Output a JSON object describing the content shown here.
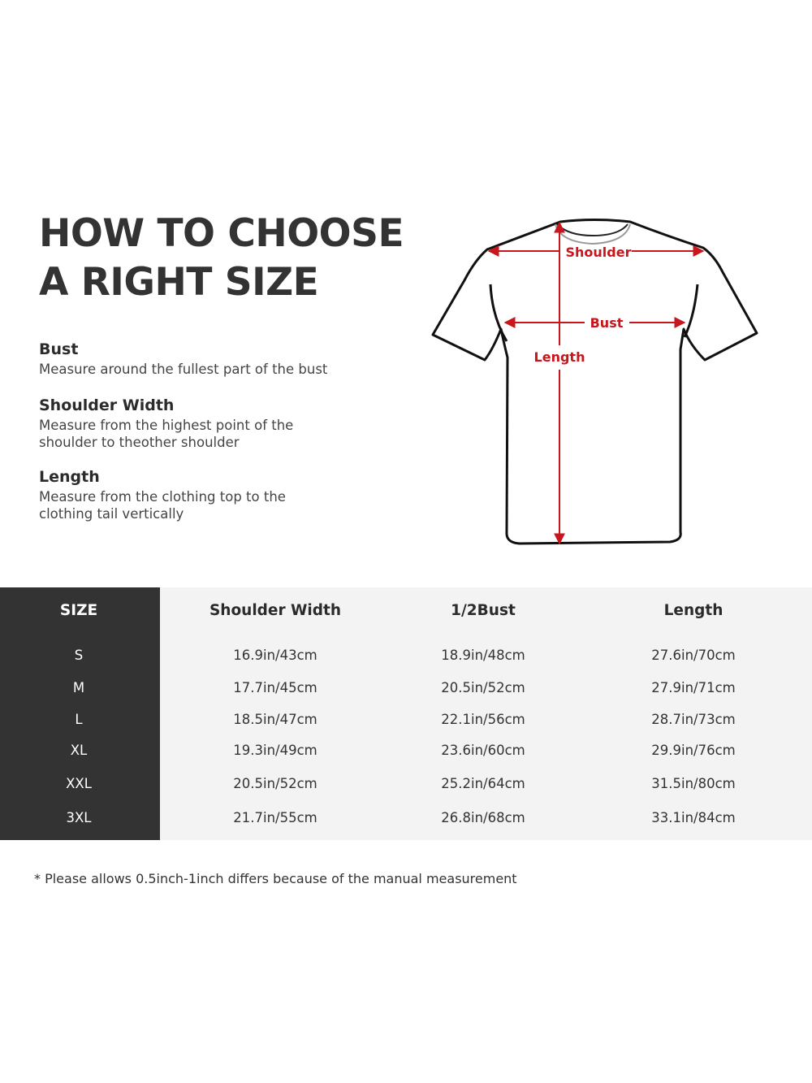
{
  "title": {
    "line1": "HOW TO CHOOSE",
    "line2": "A RIGHT SIZE"
  },
  "guide": [
    {
      "heading": "Bust",
      "text": "Measure around the fullest part of the bust"
    },
    {
      "heading": "Shoulder Width",
      "text": "Measure from the highest point of the shoulder to theother shoulder"
    },
    {
      "heading": "Length",
      "text": "Measure from the clothing top to the clothing tail vertically"
    }
  ],
  "diagram": {
    "shoulder_label": "Shoulder",
    "bust_label": "Bust",
    "length_label": "Length",
    "accent_color": "#c8161d"
  },
  "table": {
    "headers": [
      "SIZE",
      "Shoulder Width",
      "1/2Bust",
      "Length"
    ],
    "rows": [
      [
        "S",
        "16.9in/43cm",
        "18.9in/48cm",
        "27.6in/70cm"
      ],
      [
        "M",
        "17.7in/45cm",
        "20.5in/52cm",
        "27.9in/71cm"
      ],
      [
        "L",
        "18.5in/47cm",
        "22.1in/56cm",
        "28.7in/73cm"
      ],
      [
        "XL",
        "19.3in/49cm",
        "23.6in/60cm",
        "29.9in/76cm"
      ],
      [
        "XXL",
        "20.5in/52cm",
        "25.2in/64cm",
        "31.5in/80cm"
      ],
      [
        "3XL",
        "21.7in/55cm",
        "26.8in/68cm",
        "33.1in/84cm"
      ]
    ]
  },
  "note": "* Please allows 0.5inch-1inch differs because of the  manual measurement"
}
